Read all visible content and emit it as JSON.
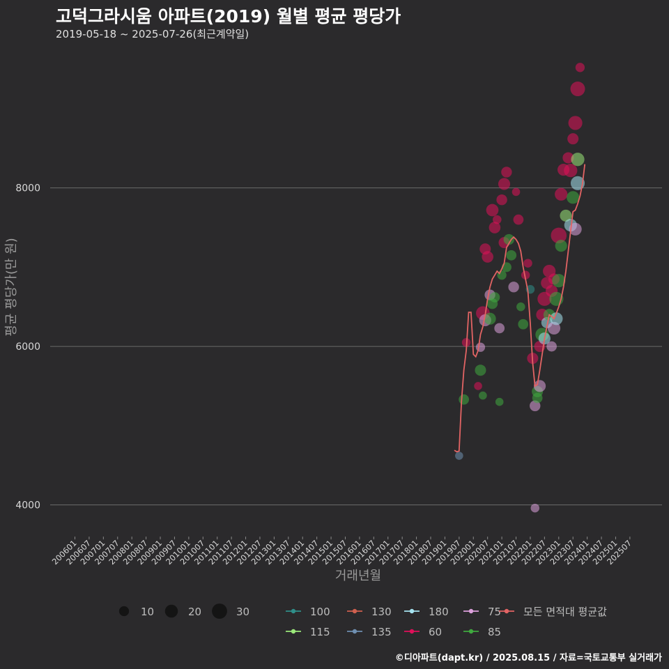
{
  "title": "고덕그라시움 아파트(2019) 월별 평균 평당가",
  "subtitle": "2019-05-18 ~ 2025-07-26(최근계약일)",
  "caption": "©디아파트(dapt.kr) / 2025.08.15 / 자료=국토교통부 실거래가",
  "chart_data": {
    "type": "scatter",
    "title": "고덕그라시움 아파트(2019) 월별 평균 평당가",
    "xlabel": "거래년월",
    "ylabel": "평균 평당가(만 원)",
    "ylim": [
      3600,
      9800
    ],
    "yticks": [
      4000,
      6000,
      8000
    ],
    "xticks": [
      "200601",
      "200607",
      "200701",
      "200707",
      "200801",
      "200807",
      "200901",
      "200907",
      "201001",
      "201007",
      "201101",
      "201107",
      "201201",
      "201207",
      "201301",
      "201307",
      "201401",
      "201407",
      "201501",
      "201507",
      "201601",
      "201607",
      "201701",
      "201707",
      "201801",
      "201807",
      "201901",
      "201907",
      "202001",
      "202007",
      "202101",
      "202107",
      "202201",
      "202207",
      "202301",
      "202307",
      "202401",
      "202407",
      "202501",
      "202507"
    ],
    "size_legend": {
      "values": [
        10,
        20,
        30
      ]
    },
    "legend": [
      {
        "label": "100",
        "color": "#2f8f8a"
      },
      {
        "label": "130",
        "color": "#d0604f"
      },
      {
        "label": "180",
        "color": "#a6e3f0"
      },
      {
        "label": "75",
        "color": "#dca0dc"
      },
      {
        "label": "모든 면적대 평균값",
        "color": "#e36464"
      },
      {
        "label": "115",
        "color": "#9be87a"
      },
      {
        "label": "135",
        "color": "#6f8fb0"
      },
      {
        "label": "60",
        "color": "#e0105a"
      },
      {
        "label": "85",
        "color": "#3fa93f"
      }
    ],
    "average_line": [
      {
        "x": "201905",
        "y": 4690
      },
      {
        "x": "201906",
        "y": 4670
      },
      {
        "x": "201907",
        "y": 4680
      },
      {
        "x": "201908",
        "y": 5300
      },
      {
        "x": "201909",
        "y": 5700
      },
      {
        "x": "201910",
        "y": 5950
      },
      {
        "x": "201911",
        "y": 6430
      },
      {
        "x": "201912",
        "y": 6430
      },
      {
        "x": "202001",
        "y": 5900
      },
      {
        "x": "202002",
        "y": 5870
      },
      {
        "x": "202003",
        "y": 5950
      },
      {
        "x": "202004",
        "y": 6150
      },
      {
        "x": "202005",
        "y": 6250
      },
      {
        "x": "202006",
        "y": 6400
      },
      {
        "x": "202007",
        "y": 6600
      },
      {
        "x": "202008",
        "y": 6750
      },
      {
        "x": "202009",
        "y": 6850
      },
      {
        "x": "202010",
        "y": 6900
      },
      {
        "x": "202011",
        "y": 6950
      },
      {
        "x": "202012",
        "y": 6920
      },
      {
        "x": "202101",
        "y": 6980
      },
      {
        "x": "202102",
        "y": 7050
      },
      {
        "x": "202103",
        "y": 7250
      },
      {
        "x": "202104",
        "y": 7300
      },
      {
        "x": "202105",
        "y": 7350
      },
      {
        "x": "202106",
        "y": 7380
      },
      {
        "x": "202107",
        "y": 7350
      },
      {
        "x": "202108",
        "y": 7300
      },
      {
        "x": "202109",
        "y": 7200
      },
      {
        "x": "202110",
        "y": 7000
      },
      {
        "x": "202111",
        "y": 6850
      },
      {
        "x": "202112",
        "y": 6700
      },
      {
        "x": "202201",
        "y": 6300
      },
      {
        "x": "202202",
        "y": 5800
      },
      {
        "x": "202203",
        "y": 5500
      },
      {
        "x": "202204",
        "y": 5520
      },
      {
        "x": "202205",
        "y": 5700
      },
      {
        "x": "202206",
        "y": 5900
      },
      {
        "x": "202207",
        "y": 6100
      },
      {
        "x": "202208",
        "y": 6250
      },
      {
        "x": "202209",
        "y": 6400
      },
      {
        "x": "202210",
        "y": 6380
      },
      {
        "x": "202211",
        "y": 6350
      },
      {
        "x": "202212",
        "y": 6420
      },
      {
        "x": "202301",
        "y": 6500
      },
      {
        "x": "202302",
        "y": 6600
      },
      {
        "x": "202303",
        "y": 6750
      },
      {
        "x": "202304",
        "y": 6950
      },
      {
        "x": "202305",
        "y": 7200
      },
      {
        "x": "202306",
        "y": 7450
      },
      {
        "x": "202307",
        "y": 7700
      },
      {
        "x": "202308",
        "y": 7720
      },
      {
        "x": "202309",
        "y": 7800
      },
      {
        "x": "202310",
        "y": 7900
      },
      {
        "x": "202311",
        "y": 8050
      },
      {
        "x": "202312",
        "y": 8300
      }
    ],
    "points": [
      {
        "x": "201907",
        "y": 4620,
        "size": 4,
        "group": "135"
      },
      {
        "x": "201909",
        "y": 5330,
        "size": 8,
        "group": "85"
      },
      {
        "x": "201910",
        "y": 6050,
        "size": 5,
        "group": "60"
      },
      {
        "x": "202003",
        "y": 5500,
        "size": 4,
        "group": "60"
      },
      {
        "x": "202004",
        "y": 5700,
        "size": 10,
        "group": "85"
      },
      {
        "x": "202004",
        "y": 5990,
        "size": 6,
        "group": "75"
      },
      {
        "x": "202005",
        "y": 6420,
        "size": 17,
        "group": "60"
      },
      {
        "x": "202005",
        "y": 5380,
        "size": 4,
        "group": "85"
      },
      {
        "x": "202006",
        "y": 7230,
        "size": 10,
        "group": "60"
      },
      {
        "x": "202006",
        "y": 6330,
        "size": 12,
        "group": "75"
      },
      {
        "x": "202007",
        "y": 7130,
        "size": 11,
        "group": "60"
      },
      {
        "x": "202008",
        "y": 6650,
        "size": 9,
        "group": "75"
      },
      {
        "x": "202008",
        "y": 6350,
        "size": 12,
        "group": "85"
      },
      {
        "x": "202009",
        "y": 7720,
        "size": 13,
        "group": "60"
      },
      {
        "x": "202009",
        "y": 6540,
        "size": 9,
        "group": "85"
      },
      {
        "x": "202010",
        "y": 7500,
        "size": 11,
        "group": "60"
      },
      {
        "x": "202010",
        "y": 6620,
        "size": 8,
        "group": "85"
      },
      {
        "x": "202011",
        "y": 7600,
        "size": 5,
        "group": "60"
      },
      {
        "x": "202012",
        "y": 6230,
        "size": 8,
        "group": "75"
      },
      {
        "x": "202012",
        "y": 5300,
        "size": 4,
        "group": "85"
      },
      {
        "x": "202101",
        "y": 7850,
        "size": 9,
        "group": "60"
      },
      {
        "x": "202101",
        "y": 6900,
        "size": 6,
        "group": "85"
      },
      {
        "x": "202102",
        "y": 8050,
        "size": 12,
        "group": "60"
      },
      {
        "x": "202102",
        "y": 7310,
        "size": 10,
        "group": "60"
      },
      {
        "x": "202103",
        "y": 8200,
        "size": 9,
        "group": "60"
      },
      {
        "x": "202103",
        "y": 7000,
        "size": 7,
        "group": "85"
      },
      {
        "x": "202104",
        "y": 7350,
        "size": 9,
        "group": "85"
      },
      {
        "x": "202105",
        "y": 7150,
        "size": 8,
        "group": "85"
      },
      {
        "x": "202106",
        "y": 6750,
        "size": 9,
        "group": "75"
      },
      {
        "x": "202107",
        "y": 7950,
        "size": 4,
        "group": "60"
      },
      {
        "x": "202108",
        "y": 7600,
        "size": 8,
        "group": "60"
      },
      {
        "x": "202109",
        "y": 6500,
        "size": 5,
        "group": "85"
      },
      {
        "x": "202110",
        "y": 6280,
        "size": 8,
        "group": "85"
      },
      {
        "x": "202111",
        "y": 6900,
        "size": 5,
        "group": "60"
      },
      {
        "x": "202112",
        "y": 7050,
        "size": 5,
        "group": "60"
      },
      {
        "x": "202201",
        "y": 6720,
        "size": 5,
        "group": "100"
      },
      {
        "x": "202202",
        "y": 5850,
        "size": 10,
        "group": "60"
      },
      {
        "x": "202203",
        "y": 5250,
        "size": 9,
        "group": "75"
      },
      {
        "x": "202203",
        "y": 3960,
        "size": 5,
        "group": "75"
      },
      {
        "x": "202204",
        "y": 5430,
        "size": 10,
        "group": "85"
      },
      {
        "x": "202204",
        "y": 5350,
        "size": 8,
        "group": "85"
      },
      {
        "x": "202205",
        "y": 5500,
        "size": 12,
        "group": "75"
      },
      {
        "x": "202205",
        "y": 6000,
        "size": 10,
        "group": "60"
      },
      {
        "x": "202206",
        "y": 6150,
        "size": 16,
        "group": "85"
      },
      {
        "x": "202206",
        "y": 6400,
        "size": 12,
        "group": "60"
      },
      {
        "x": "202207",
        "y": 6600,
        "size": 18,
        "group": "60"
      },
      {
        "x": "202207",
        "y": 6100,
        "size": 12,
        "group": "180"
      },
      {
        "x": "202208",
        "y": 6800,
        "size": 12,
        "group": "60"
      },
      {
        "x": "202208",
        "y": 6300,
        "size": 10,
        "group": "180"
      },
      {
        "x": "202209",
        "y": 6950,
        "size": 14,
        "group": "60"
      },
      {
        "x": "202209",
        "y": 6400,
        "size": 11,
        "group": "85"
      },
      {
        "x": "202210",
        "y": 6000,
        "size": 8,
        "group": "75"
      },
      {
        "x": "202210",
        "y": 6700,
        "size": 12,
        "group": "60"
      },
      {
        "x": "202211",
        "y": 6230,
        "size": 14,
        "group": "75"
      },
      {
        "x": "202211",
        "y": 6850,
        "size": 10,
        "group": "60"
      },
      {
        "x": "202212",
        "y": 6600,
        "size": 18,
        "group": "85"
      },
      {
        "x": "202212",
        "y": 6350,
        "size": 14,
        "group": "180"
      },
      {
        "x": "202301",
        "y": 7400,
        "size": 24,
        "group": "60"
      },
      {
        "x": "202301",
        "y": 6830,
        "size": 16,
        "group": "85"
      },
      {
        "x": "202302",
        "y": 7920,
        "size": 14,
        "group": "60"
      },
      {
        "x": "202302",
        "y": 7270,
        "size": 12,
        "group": "85"
      },
      {
        "x": "202303",
        "y": 8230,
        "size": 12,
        "group": "60"
      },
      {
        "x": "202304",
        "y": 7650,
        "size": 12,
        "group": "115"
      },
      {
        "x": "202305",
        "y": 8380,
        "size": 10,
        "group": "60"
      },
      {
        "x": "202306",
        "y": 7530,
        "size": 14,
        "group": "180"
      },
      {
        "x": "202306",
        "y": 8220,
        "size": 16,
        "group": "60"
      },
      {
        "x": "202307",
        "y": 7880,
        "size": 14,
        "group": "85"
      },
      {
        "x": "202307",
        "y": 8620,
        "size": 10,
        "group": "60"
      },
      {
        "x": "202308",
        "y": 8820,
        "size": 18,
        "group": "60"
      },
      {
        "x": "202308",
        "y": 7480,
        "size": 14,
        "group": "75"
      },
      {
        "x": "202309",
        "y": 9250,
        "size": 20,
        "group": "60"
      },
      {
        "x": "202309",
        "y": 8060,
        "size": 18,
        "group": "180"
      },
      {
        "x": "202309",
        "y": 8360,
        "size": 16,
        "group": "115"
      },
      {
        "x": "202310",
        "y": 9520,
        "size": 6,
        "group": "60"
      }
    ]
  }
}
